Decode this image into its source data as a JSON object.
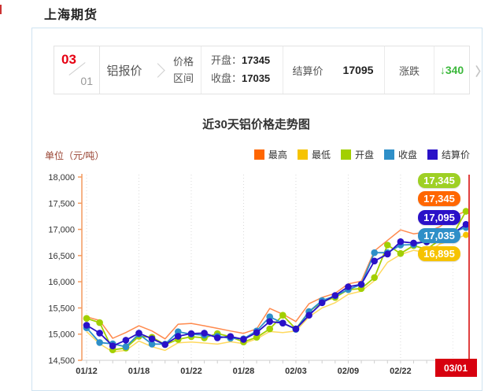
{
  "page": {
    "title": "上海期货"
  },
  "quote_bar": {
    "date_month": "03",
    "date_day": "01",
    "product": "铝报价",
    "range_label_line1": "价格",
    "range_label_line2": "区间",
    "open_label": "开盘：",
    "open_value": "17345",
    "close_label": "收盘：",
    "close_value": "17035",
    "settlement_label": "结算价",
    "settlement_value": "17095",
    "change_label": "涨跌",
    "change_arrow": "↓",
    "change_value": "340",
    "change_direction": "down",
    "change_color": "#3cb83c",
    "next_arrow": "〉"
  },
  "chart": {
    "title": "近30天铝价格走势图",
    "unit_label": "单位（元/吨）",
    "legend": [
      {
        "label": "最高",
        "color": "#ff6600"
      },
      {
        "label": "最低",
        "color": "#f6c300"
      },
      {
        "label": "开盘",
        "color": "#a2cf00"
      },
      {
        "label": "收盘",
        "color": "#2e8fc8"
      },
      {
        "label": "结算价",
        "color": "#2a11c8"
      }
    ],
    "final_badges": [
      {
        "value": "17,345",
        "color": "#9ed024",
        "series": "开盘"
      },
      {
        "value": "17,345",
        "color": "#ff6600",
        "series": "最高"
      },
      {
        "value": "17,095",
        "color": "#2a11c8",
        "series": "结算价"
      },
      {
        "value": "17,035",
        "color": "#2e8fc8",
        "series": "收盘"
      },
      {
        "value": "16,895",
        "color": "#f6c300",
        "series": "最低"
      }
    ],
    "end_marker": {
      "label": "03/01",
      "color": "#d7000f"
    }
  },
  "chart_data": {
    "type": "line",
    "title": "近30天铝价格走势图",
    "ylabel": "单位（元/吨）",
    "ylim": [
      14500,
      18000
    ],
    "y_ticks": [
      18000,
      17500,
      17000,
      16500,
      16000,
      15500,
      15000,
      14500
    ],
    "y_tick_labels": [
      "18,000",
      "17,500",
      "17,000",
      "16,500",
      "16,000",
      "15,500",
      "15,000",
      "14,500"
    ],
    "x": [
      "01/12",
      "01/13",
      "01/14",
      "01/15",
      "01/18",
      "01/19",
      "01/20",
      "01/21",
      "01/22",
      "01/25",
      "01/26",
      "01/27",
      "01/28",
      "01/29",
      "02/01",
      "02/02",
      "02/03",
      "02/04",
      "02/05",
      "02/08",
      "02/09",
      "02/10",
      "02/18",
      "02/19",
      "02/22",
      "02/23",
      "02/24",
      "02/25",
      "02/26",
      "03/01"
    ],
    "x_axis_tick_labels": [
      "01/12",
      "01/18",
      "01/22",
      "01/28",
      "02/03",
      "02/09",
      "02/22",
      "03/01"
    ],
    "x_axis_tick_indices": [
      0,
      4,
      8,
      12,
      16,
      20,
      24,
      29
    ],
    "grid": "vertical-dotted",
    "legend_position": "top-right",
    "highlight_last": {
      "label": "03/01",
      "color": "#d7000f",
      "line_color": "#e04040"
    },
    "series": [
      {
        "name": "最高",
        "color": "#ff6600",
        "line_color": "#ff8a4d",
        "markers": false,
        "values": [
          15330,
          15260,
          14920,
          15030,
          15160,
          15060,
          14910,
          15190,
          15205,
          15160,
          15110,
          15060,
          15015,
          15100,
          15490,
          15380,
          15240,
          15580,
          15700,
          15780,
          15960,
          16010,
          16590,
          16790,
          16990,
          16915,
          16950,
          17050,
          17250,
          17345
        ]
      },
      {
        "name": "最低",
        "color": "#f6c300",
        "line_color": "#ffd95e",
        "markers": false,
        "values": [
          15050,
          14815,
          14660,
          14690,
          14870,
          14760,
          14690,
          14835,
          14850,
          14830,
          14810,
          14855,
          14820,
          14910,
          15050,
          15030,
          15060,
          15330,
          15500,
          15600,
          15760,
          15820,
          16020,
          16370,
          16520,
          16600,
          16560,
          16720,
          16800,
          16895
        ]
      },
      {
        "name": "开盘",
        "color": "#a2cf00",
        "line_color": "#a2cf00",
        "markers": true,
        "values": [
          15300,
          15220,
          14700,
          14735,
          14960,
          14940,
          14800,
          14900,
          14950,
          14930,
          15010,
          14950,
          14850,
          14940,
          15100,
          15360,
          15100,
          15430,
          15620,
          15700,
          15850,
          15870,
          16080,
          16700,
          16540,
          16690,
          16620,
          16800,
          16900,
          17345
        ]
      },
      {
        "name": "收盘",
        "color": "#2e8fc8",
        "line_color": "#2e8fc8",
        "markers": true,
        "values": [
          15120,
          14840,
          14815,
          14760,
          15000,
          14810,
          14810,
          15045,
          15000,
          14980,
          14960,
          14920,
          14910,
          15060,
          15330,
          15210,
          15090,
          15430,
          15640,
          15730,
          15850,
          15950,
          16555,
          16555,
          16700,
          16710,
          16780,
          16900,
          16950,
          17035
        ]
      },
      {
        "name": "结算价",
        "color": "#2a11c8",
        "line_color": "#2a11c8",
        "markers": true,
        "values": [
          15170,
          15020,
          14775,
          14885,
          15020,
          14910,
          14800,
          14960,
          15010,
          15020,
          14930,
          14955,
          14900,
          15030,
          15240,
          15210,
          15100,
          15360,
          15600,
          15740,
          15905,
          15950,
          16395,
          16530,
          16765,
          16740,
          16760,
          16870,
          16920,
          17095
        ]
      }
    ]
  }
}
